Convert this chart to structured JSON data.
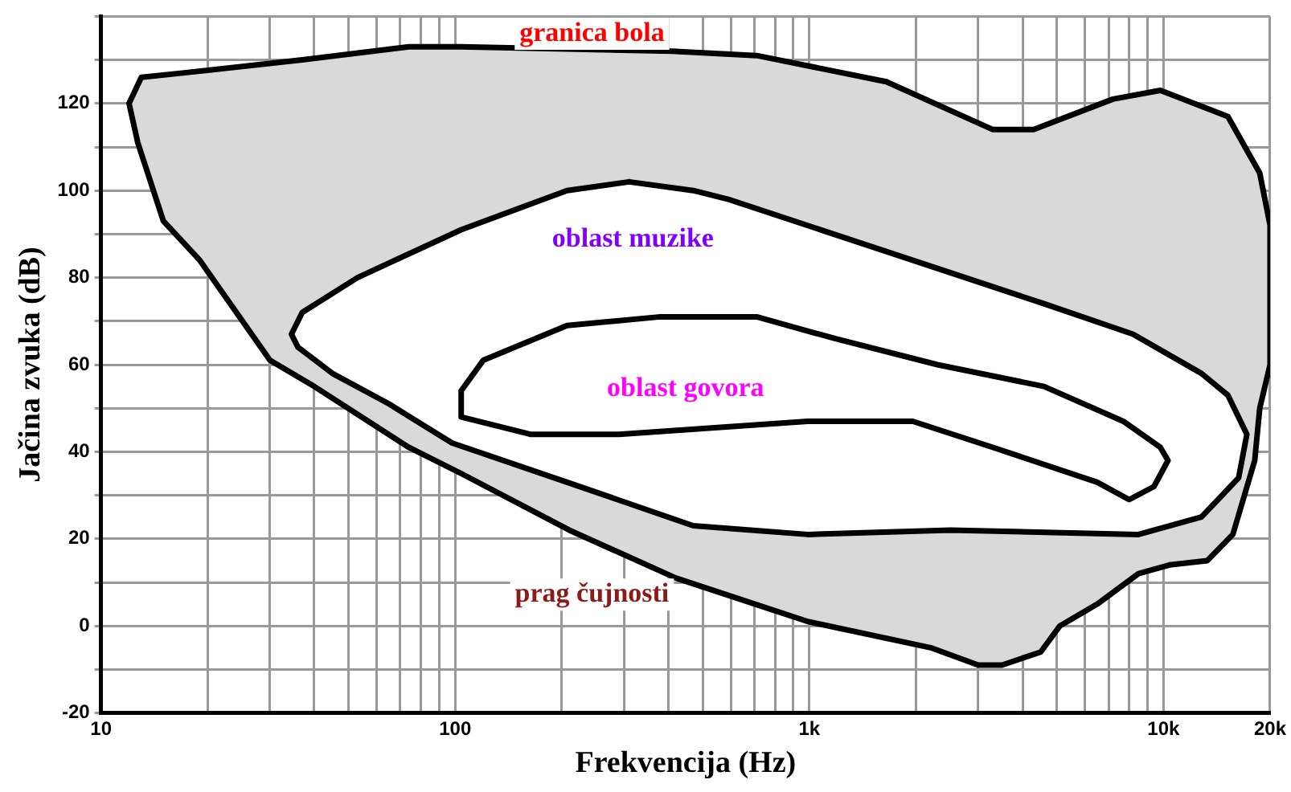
{
  "chart_data": {
    "type": "area",
    "xlabel": "Frekvencija (Hz)",
    "ylabel": "Jačina zvuka (dB)",
    "log": "x",
    "grid": true,
    "marker": "none",
    "line_style": "solid",
    "xlim": [
      10,
      20000
    ],
    "ylim": [
      -20,
      140
    ],
    "xticks": [
      10,
      {
        "value": 20,
        "label": null
      },
      {
        "value": 30,
        "label": null
      },
      {
        "value": 40,
        "label": null
      },
      {
        "value": 50,
        "label": null
      },
      {
        "value": 60,
        "label": null
      },
      {
        "value": 70,
        "label": null
      },
      {
        "value": 80,
        "label": null
      },
      {
        "value": 90,
        "label": null
      },
      100,
      {
        "value": 200,
        "label": null
      },
      {
        "value": 300,
        "label": null
      },
      {
        "value": 400,
        "label": null
      },
      {
        "value": 500,
        "label": null
      },
      {
        "value": 600,
        "label": null
      },
      {
        "value": 700,
        "label": null
      },
      {
        "value": 800,
        "label": null
      },
      {
        "value": 900,
        "label": null
      },
      {
        "value": 1000,
        "label": "1k"
      },
      {
        "value": 2000,
        "label": null
      },
      {
        "value": 3000,
        "label": null
      },
      {
        "value": 4000,
        "label": null
      },
      {
        "value": 5000,
        "label": null
      },
      {
        "value": 6000,
        "label": null
      },
      {
        "value": 7000,
        "label": null
      },
      {
        "value": 8000,
        "label": null
      },
      {
        "value": 9000,
        "label": null
      },
      {
        "value": 10000,
        "label": "10k"
      },
      {
        "value": 20000,
        "label": "20k"
      }
    ],
    "yticks": [
      -20,
      {
        "value": -10,
        "label": null
      },
      0,
      {
        "value": 10,
        "label": null
      },
      20,
      {
        "value": 30,
        "label": null
      },
      40,
      {
        "value": 50,
        "label": null
      },
      60,
      {
        "value": 70,
        "label": null
      },
      80,
      {
        "value": 90,
        "label": null
      },
      100,
      {
        "value": 110,
        "label": null
      },
      120,
      {
        "value": 130,
        "label": null
      },
      {
        "value": 140,
        "label": null
      }
    ],
    "series": [
      {
        "color": "#d9d9d9",
        "x": [
          12,
          13,
          17,
          37,
          74,
          104,
          410,
          710,
          1650,
          3300,
          4300,
          7200,
          9800,
          15200,
          18700,
          20000,
          20000,
          18700,
          18100,
          15700,
          13300,
          10400,
          8500,
          6500,
          5100,
          4500,
          3500,
          3000,
          2200,
          990,
          420,
          210,
          104,
          74,
          40,
          30,
          19,
          15,
          12.7,
          12
        ],
        "values": [
          120,
          126,
          127,
          130,
          133,
          133,
          132,
          131,
          125,
          114,
          114,
          121,
          123,
          117,
          104,
          92,
          60,
          50,
          38,
          21,
          15,
          14,
          12,
          5,
          0,
          -6,
          -9,
          -9,
          -5,
          1,
          11,
          22,
          35,
          41,
          55,
          61,
          84,
          93,
          111,
          120
        ]
      },
      {
        "color": "#ffffff",
        "x": [
          310,
          207,
          104,
          53,
          37,
          34.5,
          36,
          45,
          65,
          98,
          207,
          470,
          990,
          2500,
          8500,
          12800,
          16300,
          17200,
          15200,
          12800,
          8200,
          4600,
          1650,
          590,
          470,
          310
        ],
        "values": [
          102,
          100,
          91,
          80,
          72,
          67,
          64,
          58,
          51,
          42,
          33,
          23,
          21,
          22,
          21,
          25,
          34,
          44,
          53,
          58,
          67,
          74,
          86,
          98,
          100,
          102
        ]
      },
      {
        "color": "#ffffff",
        "x": [
          380,
          207,
          120,
          104,
          104,
          163,
          290,
          990,
          1960,
          3300,
          6500,
          8000,
          9400,
          10300,
          9800,
          7700,
          4600,
          2300,
          1180,
          710,
          380
        ],
        "values": [
          71,
          69,
          61,
          54,
          48,
          44,
          44,
          47,
          47,
          41,
          33,
          29,
          32,
          38,
          41,
          47,
          55,
          60,
          66,
          71,
          71
        ]
      }
    ],
    "annotations": [
      "granica bola",
      "oblast muzike",
      "oblast govora",
      "prag čujnosti"
    ]
  }
}
